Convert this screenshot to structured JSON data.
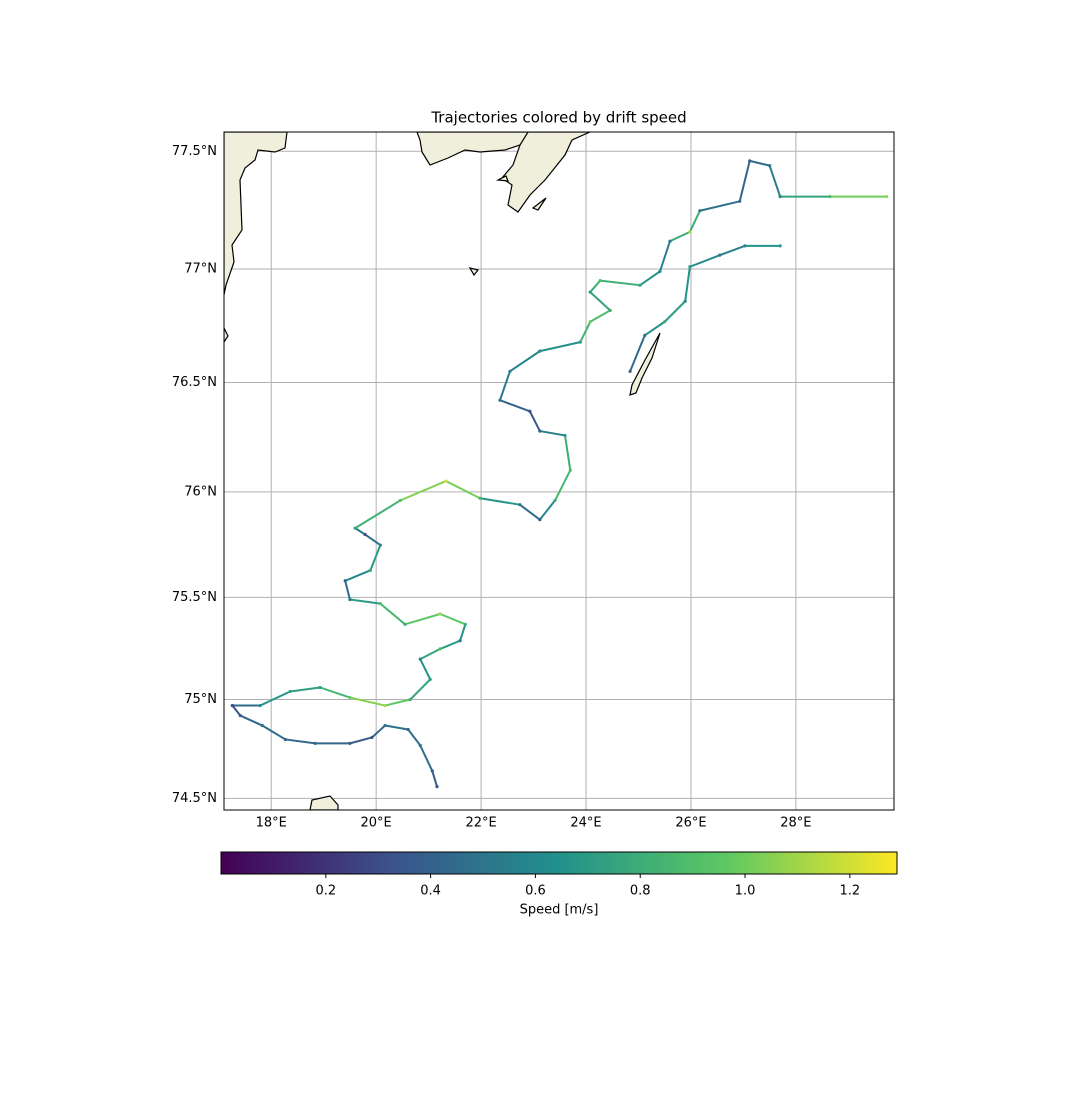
{
  "chart_data": {
    "type": "trajectory",
    "title": "Trajectories colored by drift speed",
    "xlim": [
      17.1,
      29.87
    ],
    "ylim": [
      74.44,
      77.58
    ],
    "xticks": [
      {
        "value": 18,
        "label": "18°E"
      },
      {
        "value": 20,
        "label": "20°E"
      },
      {
        "value": 22,
        "label": "22°E"
      },
      {
        "value": 24,
        "label": "24°E"
      },
      {
        "value": 26,
        "label": "26°E"
      },
      {
        "value": 28,
        "label": "28°E"
      }
    ],
    "yticks": [
      {
        "value": 74.5,
        "label": "74.5°N"
      },
      {
        "value": 75,
        "label": "75°N"
      },
      {
        "value": 75.5,
        "label": "75.5°N"
      },
      {
        "value": 76,
        "label": "76°N"
      },
      {
        "value": 76.5,
        "label": "76.5°N"
      },
      {
        "value": 77,
        "label": "77°N"
      },
      {
        "value": 77.5,
        "label": "77.5°N"
      }
    ],
    "grid": true,
    "colorbar": {
      "label": "Speed  [m/s]",
      "clim": [
        0.0,
        1.29
      ],
      "ticks": [
        0.2,
        0.4,
        0.6,
        0.8,
        {
          "value": 1,
          "label": "1.0"
        },
        1.2
      ],
      "colormap": [
        "#440154",
        "#3b528b",
        "#21918c",
        "#5ec962",
        "#fde725"
      ]
    },
    "trajectories": [
      {
        "lon": [
          21.16,
          21.07,
          20.84,
          20.61,
          20.17,
          19.92,
          19.5,
          18.84,
          18.27,
          17.83,
          17.41,
          17.26
        ],
        "lat": [
          74.56,
          74.64,
          74.77,
          74.85,
          74.87,
          74.81,
          74.78,
          74.78,
          74.8,
          74.87,
          74.92,
          74.97
        ],
        "speed": [
          0.35,
          0.4,
          0.5,
          0.45,
          0.5,
          0.35,
          0.4,
          0.45,
          0.4,
          0.5,
          0.35,
          0.3
        ]
      },
      {
        "lon": [
          17.26,
          17.79,
          18.36,
          18.93,
          19.5,
          20.17,
          20.65,
          21.03,
          20.84,
          21.22,
          21.6,
          21.7,
          21.22,
          20.55,
          20.08,
          19.5,
          19.41,
          19.89,
          20.08,
          19.79,
          19.6,
          20.46,
          21.33,
          21.98,
          22.74,
          23.12,
          23.41,
          23.7,
          23.6,
          23.12,
          22.93,
          22.36,
          22.55,
          23.12,
          23.89,
          24.08,
          24.46,
          24.08,
          24.27,
          25.03,
          25.41,
          25.6,
          25.98,
          26.17,
          26.93,
          27.12,
          27.5,
          27.7,
          28.65,
          29.73
        ],
        "lat": [
          74.97,
          74.97,
          75.04,
          75.06,
          75.01,
          74.97,
          75.0,
          75.1,
          75.2,
          75.25,
          75.29,
          75.37,
          75.42,
          75.37,
          75.47,
          75.49,
          75.58,
          75.63,
          75.75,
          75.8,
          75.83,
          75.96,
          76.05,
          75.97,
          75.94,
          75.87,
          75.96,
          76.1,
          76.26,
          76.28,
          76.37,
          76.42,
          76.55,
          76.64,
          76.68,
          76.77,
          76.82,
          76.9,
          76.95,
          76.93,
          76.99,
          77.12,
          77.16,
          77.25,
          77.29,
          77.46,
          77.44,
          77.31,
          77.31,
          77.31
        ],
        "speed": [
          0.3,
          0.6,
          0.75,
          0.7,
          1.0,
          1.1,
          0.8,
          0.7,
          0.6,
          0.9,
          0.5,
          0.8,
          1.1,
          0.8,
          0.9,
          0.5,
          0.4,
          0.8,
          0.6,
          0.3,
          0.75,
          0.9,
          1.2,
          0.85,
          0.5,
          0.4,
          0.8,
          0.9,
          0.7,
          0.4,
          0.3,
          0.5,
          0.55,
          0.6,
          0.7,
          1.0,
          0.8,
          0.7,
          0.9,
          0.75,
          0.6,
          0.5,
          1.1,
          0.5,
          0.45,
          0.4,
          0.5,
          0.6,
          0.9,
          1.1
        ]
      },
      {
        "lon": [
          24.84,
          25.12,
          25.5,
          25.89,
          25.98,
          26.55,
          27.03,
          27.7
        ],
        "lat": [
          76.55,
          76.71,
          76.77,
          76.86,
          77.01,
          77.06,
          77.1,
          77.1
        ],
        "speed": [
          0.4,
          0.5,
          0.8,
          0.6,
          0.7,
          0.5,
          0.6,
          0.7
        ]
      }
    ]
  }
}
